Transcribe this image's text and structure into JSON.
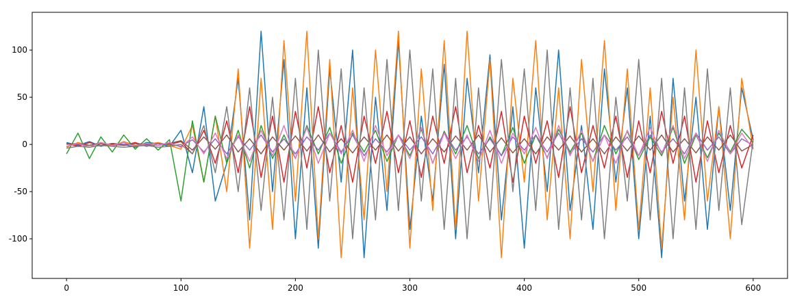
{
  "chart_data": {
    "type": "line",
    "x": [
      0,
      10,
      20,
      30,
      40,
      50,
      60,
      70,
      80,
      90,
      100,
      110,
      120,
      130,
      140,
      150,
      160,
      170,
      180,
      190,
      200,
      210,
      220,
      230,
      240,
      250,
      260,
      270,
      280,
      290,
      300,
      310,
      320,
      330,
      340,
      350,
      360,
      370,
      380,
      390,
      400,
      410,
      420,
      430,
      440,
      450,
      460,
      470,
      480,
      490,
      500,
      510,
      520,
      530,
      540,
      550,
      560,
      570,
      580,
      590,
      600
    ],
    "series": [
      {
        "color": "#1f77b4",
        "values": [
          2,
          -1,
          3,
          -2,
          1,
          0,
          -3,
          2,
          1,
          -2,
          15,
          -30,
          40,
          -60,
          -20,
          70,
          -80,
          120,
          -50,
          90,
          -100,
          60,
          -110,
          80,
          -40,
          100,
          -120,
          50,
          -70,
          110,
          -90,
          30,
          -60,
          85,
          -100,
          70,
          -30,
          95,
          -80,
          40,
          -110,
          60,
          -50,
          100,
          -70,
          20,
          -90,
          80,
          -40,
          60,
          -100,
          30,
          -120,
          70,
          -60,
          50,
          -90,
          40,
          -70,
          60,
          5
        ]
      },
      {
        "color": "#ff7f0e",
        "values": [
          -3,
          2,
          -1,
          1,
          -2,
          3,
          -1,
          0,
          2,
          -1,
          -5,
          20,
          -40,
          30,
          -50,
          80,
          -110,
          70,
          -90,
          110,
          -60,
          120,
          -100,
          90,
          -120,
          60,
          -80,
          100,
          -50,
          120,
          -110,
          80,
          -70,
          110,
          -90,
          120,
          -60,
          90,
          -120,
          70,
          -40,
          110,
          -80,
          60,
          -100,
          90,
          -50,
          110,
          -70,
          80,
          -90,
          60,
          -110,
          50,
          -80,
          100,
          -60,
          40,
          -100,
          70,
          -5
        ]
      },
      {
        "color": "#2ca02c",
        "values": [
          -10,
          12,
          -15,
          8,
          -8,
          10,
          -5,
          6,
          -6,
          5,
          -60,
          25,
          -40,
          30,
          -20,
          15,
          -25,
          20,
          -15,
          10,
          -15,
          20,
          -10,
          18,
          -20,
          12,
          -8,
          15,
          -18,
          10,
          -12,
          16,
          -20,
          14,
          -10,
          20,
          -15,
          8,
          -12,
          18,
          -20,
          10,
          -14,
          16,
          -8,
          12,
          -18,
          20,
          -10,
          14,
          -16,
          8,
          -12,
          18,
          -20,
          10,
          -14,
          12,
          -8,
          16,
          2
        ]
      },
      {
        "color": "#d62728",
        "values": [
          1,
          -2,
          2,
          -1,
          1,
          -1,
          2,
          -2,
          1,
          0,
          3,
          -10,
          15,
          -20,
          25,
          -30,
          40,
          -35,
          30,
          -40,
          35,
          -25,
          40,
          -30,
          20,
          -40,
          30,
          -20,
          35,
          -30,
          25,
          -35,
          30,
          -20,
          40,
          -30,
          20,
          -25,
          35,
          -40,
          30,
          -20,
          25,
          -35,
          40,
          -30,
          20,
          -25,
          30,
          -35,
          25,
          -30,
          35,
          -20,
          30,
          -40,
          25,
          -30,
          20,
          -25,
          10
        ]
      },
      {
        "color": "#9467bd",
        "values": [
          0,
          1,
          -1,
          2,
          -1,
          0,
          1,
          -2,
          1,
          0,
          -2,
          5,
          -8,
          6,
          -10,
          8,
          -6,
          10,
          -8,
          6,
          -10,
          8,
          -6,
          12,
          -8,
          10,
          -12,
          6,
          -8,
          10,
          -6,
          8,
          -10,
          12,
          -6,
          8,
          -10,
          6,
          -12,
          8,
          -6,
          10,
          -8,
          12,
          -10,
          6,
          -8,
          10,
          -6,
          8,
          -12,
          10,
          -8,
          6,
          -10,
          12,
          -6,
          8,
          -10,
          6,
          -1
        ]
      },
      {
        "color": "#8c564b",
        "values": [
          1,
          0,
          -1,
          1,
          0,
          -1,
          1,
          0,
          -1,
          1,
          4,
          -6,
          8,
          -5,
          10,
          -8,
          6,
          -10,
          8,
          -6,
          9,
          -7,
          10,
          -8,
          6,
          -9,
          8,
          -6,
          10,
          -7,
          8,
          -10,
          6,
          -8,
          9,
          -6,
          10,
          -8,
          7,
          -9,
          6,
          -10,
          8,
          -6,
          9,
          -8,
          6,
          -10,
          8,
          -7,
          9,
          -6,
          10,
          -8,
          6,
          -9,
          8,
          -6,
          10,
          -7,
          0
        ]
      },
      {
        "color": "#e377c2",
        "values": [
          -2,
          1,
          -3,
          2,
          -1,
          2,
          -2,
          1,
          -1,
          2,
          -3,
          8,
          -10,
          12,
          -15,
          10,
          -18,
          15,
          -12,
          20,
          -15,
          18,
          -20,
          12,
          -10,
          15,
          -18,
          20,
          -12,
          10,
          -15,
          18,
          -20,
          12,
          -15,
          10,
          -18,
          15,
          -20,
          12,
          -10,
          18,
          -15,
          20,
          -12,
          15,
          -18,
          10,
          -20,
          15,
          -12,
          18,
          -10,
          20,
          -15,
          12,
          -18,
          15,
          -10,
          12,
          -5
        ]
      },
      {
        "color": "#7f7f7f",
        "values": [
          -4,
          -2,
          -3,
          -1,
          -2,
          -3,
          -2,
          -1,
          -3,
          -2,
          0,
          -10,
          20,
          -30,
          40,
          -50,
          60,
          -70,
          50,
          -80,
          70,
          -90,
          100,
          -60,
          80,
          -100,
          60,
          -80,
          90,
          -70,
          100,
          -60,
          80,
          -90,
          70,
          -100,
          60,
          -80,
          90,
          -50,
          80,
          -70,
          100,
          -90,
          60,
          -80,
          70,
          -100,
          50,
          -60,
          90,
          -80,
          70,
          -100,
          60,
          -90,
          80,
          -70,
          60,
          -85,
          5
        ]
      }
    ],
    "xlim": [
      -30,
      630
    ],
    "ylim": [
      -142,
      140
    ],
    "xticks": [
      0,
      100,
      200,
      300,
      400,
      500,
      600
    ],
    "yticks": [
      -100,
      -50,
      0,
      50,
      100
    ]
  }
}
